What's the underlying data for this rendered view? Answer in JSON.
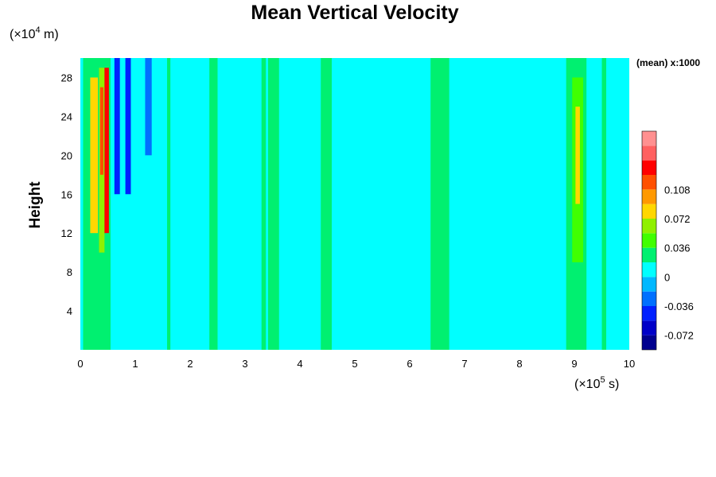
{
  "chart_data": {
    "type": "heatmap",
    "title": "Mean Vertical Velocity",
    "ylabel": "Height",
    "x_unit": {
      "prefix": "(×10",
      "exp": "5",
      "suffix": " s)"
    },
    "y_unit": {
      "prefix": "(×10",
      "exp": "4",
      "suffix": " m)"
    },
    "xlim": [
      0,
      10
    ],
    "ylim": [
      0,
      30
    ],
    "xticks": [
      "0",
      "1",
      "2",
      "3",
      "4",
      "5",
      "6",
      "7",
      "8",
      "9",
      "10"
    ],
    "yticks": [
      "4",
      "8",
      "12",
      "16",
      "20",
      "24",
      "28"
    ],
    "colorbar": {
      "title": "(mean) x:1000",
      "levels": [
        -0.072,
        -0.054,
        -0.036,
        -0.018,
        0,
        0.018,
        0.036,
        0.054,
        0.072,
        0.09,
        0.108,
        0.126,
        0.144
      ],
      "labels": [
        "-0.072",
        "-0.036",
        "0",
        "0.036",
        "0.072",
        "0.108"
      ],
      "colors": [
        "#00008f",
        "#0000c8",
        "#0020ff",
        "#0070ff",
        "#00b8ff",
        "#00ffff",
        "#00f070",
        "#40ff00",
        "#90f000",
        "#ffd700",
        "#ff9900",
        "#ff5000",
        "#ff0000",
        "#ff6060",
        "#ff9090"
      ]
    },
    "background_value": 0.0,
    "features": [
      {
        "x": [
          0.05,
          0.55
        ],
        "y": [
          0,
          30
        ],
        "value": 0.018
      },
      {
        "x": [
          0.18,
          0.32
        ],
        "y": [
          12,
          28
        ],
        "value": 0.072
      },
      {
        "x": [
          0.34,
          0.44
        ],
        "y": [
          10,
          29
        ],
        "value": 0.054
      },
      {
        "x": [
          0.44,
          0.52
        ],
        "y": [
          12,
          29
        ],
        "value": 0.126
      },
      {
        "x": [
          0.36,
          0.42
        ],
        "y": [
          18,
          27
        ],
        "value": 0.108
      },
      {
        "x": [
          0.62,
          0.72
        ],
        "y": [
          16,
          30
        ],
        "value": -0.054
      },
      {
        "x": [
          0.82,
          0.92
        ],
        "y": [
          16,
          30
        ],
        "value": -0.054
      },
      {
        "x": [
          1.18,
          1.3
        ],
        "y": [
          20,
          30
        ],
        "value": -0.036
      },
      {
        "x": [
          1.58,
          1.64
        ],
        "y": [
          0,
          30
        ],
        "value": 0.018
      },
      {
        "x": [
          2.35,
          2.5
        ],
        "y": [
          0,
          30
        ],
        "value": 0.018
      },
      {
        "x": [
          3.3,
          3.38
        ],
        "y": [
          0,
          30
        ],
        "value": 0.018
      },
      {
        "x": [
          3.42,
          3.62
        ],
        "y": [
          0,
          30
        ],
        "value": 0.018
      },
      {
        "x": [
          4.38,
          4.58
        ],
        "y": [
          0,
          30
        ],
        "value": 0.018
      },
      {
        "x": [
          6.38,
          6.72
        ],
        "y": [
          0,
          30
        ],
        "value": 0.018
      },
      {
        "x": [
          8.85,
          9.22
        ],
        "y": [
          0,
          30
        ],
        "value": 0.018
      },
      {
        "x": [
          8.96,
          9.16
        ],
        "y": [
          9,
          28
        ],
        "value": 0.036
      },
      {
        "x": [
          9.02,
          9.1
        ],
        "y": [
          15,
          25
        ],
        "value": 0.072
      },
      {
        "x": [
          9.5,
          9.58
        ],
        "y": [
          0,
          30
        ],
        "value": 0.018
      }
    ]
  }
}
